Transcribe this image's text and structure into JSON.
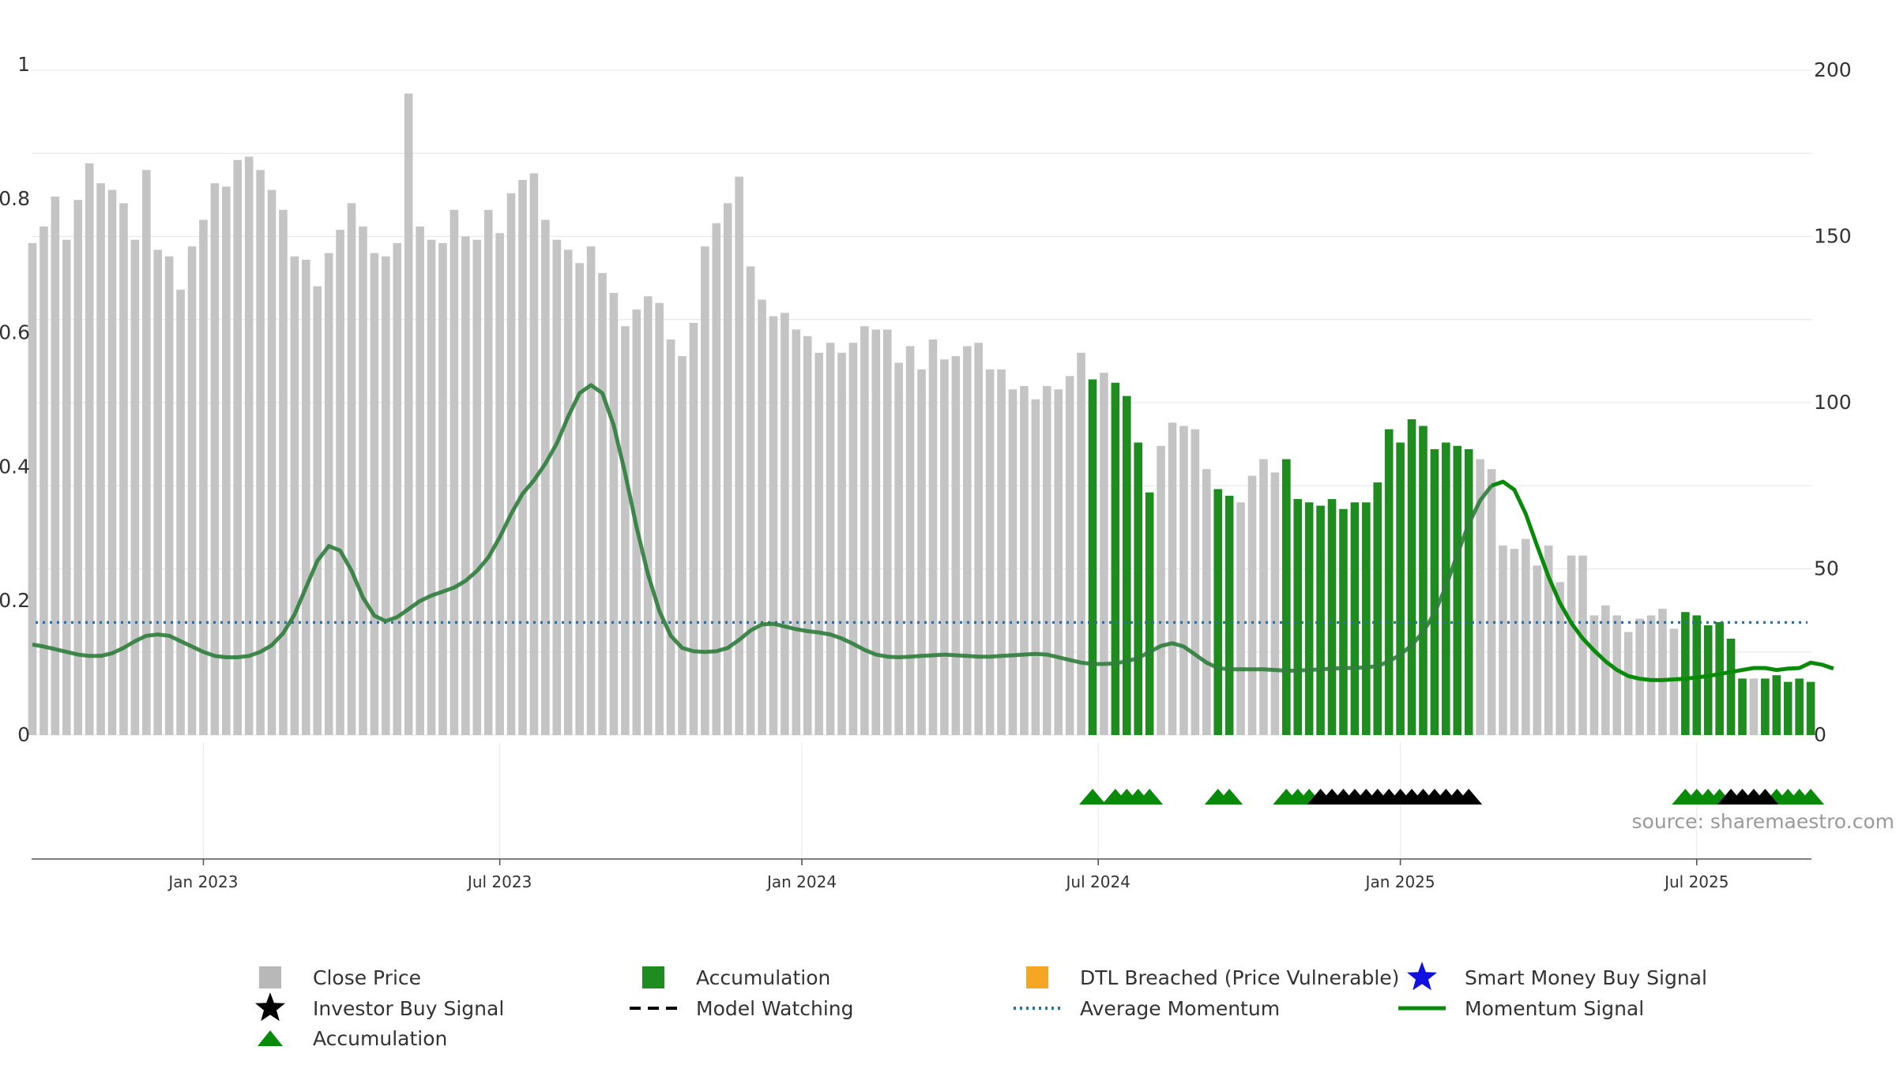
{
  "source_label": "source: sharemaestro.com",
  "colors": {
    "close_price": "#c4c4c4",
    "accumulation_bar": "#1e8c1e",
    "accumulation_marker": "#0a8a0a",
    "investor_buy": "#000000",
    "momentum_line": "#2f7d3c",
    "momentum_line_recent": "#0a8a0a",
    "average_momentum": "#2a6fa8",
    "dtl_breached": "#f5a623",
    "smart_money": "#1010e0"
  },
  "legend": [
    {
      "label": "Close Price",
      "icon": "gray-square-icon",
      "color": "#b8b8b8"
    },
    {
      "label": "Accumulation",
      "icon": "green-square-icon",
      "color": "#1e8c1e"
    },
    {
      "label": "DTL Breached (Price Vulnerable)",
      "icon": "orange-square-icon",
      "color": "#f5a623"
    },
    {
      "label": "Smart Money Buy Signal",
      "icon": "blue-star-icon",
      "color": "#1010e0"
    },
    {
      "label": "Investor Buy Signal",
      "icon": "black-star-icon",
      "color": "#000000"
    },
    {
      "label": "Model Watching",
      "icon": "black-dashed-line-icon",
      "color": "#000000"
    },
    {
      "label": "Average Momentum",
      "icon": "blue-dotted-line-icon",
      "color": "#2a6fa8"
    },
    {
      "label": "Momentum Signal",
      "icon": "green-line-icon",
      "color": "#0a8a0a"
    },
    {
      "label": "Accumulation",
      "icon": "green-triangle-icon",
      "color": "#0a8a0a"
    }
  ],
  "chart_data": {
    "type": "bar",
    "title": "",
    "xlabel": "",
    "ylabel_left": "",
    "ylabel_right": "",
    "left_axis": {
      "ticks": [
        "0",
        "0.2",
        "0.4",
        "0.6",
        "0.8",
        "1"
      ],
      "ylim": [
        0,
        1
      ]
    },
    "right_axis": {
      "ticks": [
        "0",
        "50",
        "100",
        "150",
        "200"
      ],
      "ylim": [
        0,
        200
      ]
    },
    "x_ticks": [
      {
        "label": "Jan 2023",
        "week": 15
      },
      {
        "label": "Jul 2023",
        "week": 41
      },
      {
        "label": "Jan 2024",
        "week": 67.5
      },
      {
        "label": "Jul 2024",
        "week": 93.5
      },
      {
        "label": "Jan 2025",
        "week": 120
      },
      {
        "label": "Jul 2025",
        "week": 146
      }
    ],
    "grid": true,
    "legend_position": "bottom",
    "series": [
      {
        "name": "Close Price",
        "kind": "bar",
        "axis": "right",
        "values": [
          148,
          153,
          162,
          149,
          161,
          172,
          166,
          164,
          160,
          149,
          170,
          146,
          144,
          134,
          147,
          155,
          166,
          165,
          173,
          174,
          170,
          164,
          158,
          144,
          143,
          135,
          145,
          152,
          160,
          153,
          145,
          144,
          148,
          193,
          153,
          149,
          148,
          158,
          150,
          149,
          158,
          151,
          163,
          167,
          169,
          155,
          149,
          146,
          142,
          147,
          139,
          133,
          123,
          128,
          132,
          130,
          119,
          114,
          124,
          147,
          154,
          160,
          168,
          141,
          131,
          126,
          127,
          122,
          120,
          115,
          118,
          115,
          118,
          123,
          122,
          122,
          112,
          117,
          110,
          119,
          113,
          114,
          117,
          118,
          110,
          110,
          104,
          105,
          101,
          105,
          104,
          108,
          115,
          107,
          109,
          106,
          102,
          88,
          73,
          87,
          94,
          93,
          92,
          80,
          74,
          72,
          70,
          78,
          83,
          79,
          83,
          71,
          70,
          69,
          71,
          68,
          70,
          70,
          76,
          92,
          88,
          95,
          93,
          86,
          88,
          87,
          86,
          83,
          80,
          57,
          56,
          59,
          51,
          57,
          46,
          54,
          54,
          36,
          39,
          36,
          31,
          35,
          36,
          38,
          32,
          37,
          36,
          33,
          34,
          29,
          17,
          17,
          17,
          18,
          16,
          17,
          16
        ],
        "accumulation_weeks": [
          93,
          95,
          96,
          97,
          98,
          104,
          105,
          110,
          111,
          112,
          113,
          114,
          115,
          116,
          117,
          118,
          119,
          120,
          121,
          122,
          123,
          124,
          125,
          126,
          145,
          146,
          147,
          148,
          149,
          150,
          152,
          153,
          154,
          155,
          156
        ]
      },
      {
        "name": "Momentum Signal",
        "kind": "line",
        "axis": "left",
        "values": [
          0.135,
          0.132,
          0.128,
          0.124,
          0.12,
          0.118,
          0.118,
          0.122,
          0.13,
          0.14,
          0.148,
          0.15,
          0.148,
          0.14,
          0.132,
          0.124,
          0.118,
          0.116,
          0.116,
          0.118,
          0.124,
          0.134,
          0.152,
          0.18,
          0.22,
          0.26,
          0.282,
          0.275,
          0.245,
          0.205,
          0.178,
          0.17,
          0.176,
          0.188,
          0.2,
          0.208,
          0.214,
          0.22,
          0.23,
          0.245,
          0.265,
          0.295,
          0.33,
          0.36,
          0.38,
          0.405,
          0.435,
          0.475,
          0.51,
          0.522,
          0.51,
          0.462,
          0.39,
          0.31,
          0.24,
          0.185,
          0.148,
          0.13,
          0.125,
          0.124,
          0.125,
          0.13,
          0.142,
          0.156,
          0.165,
          0.166,
          0.162,
          0.158,
          0.155,
          0.153,
          0.15,
          0.144,
          0.136,
          0.127,
          0.12,
          0.117,
          0.116,
          0.117,
          0.118,
          0.119,
          0.12,
          0.119,
          0.118,
          0.117,
          0.117,
          0.118,
          0.119,
          0.12,
          0.121,
          0.12,
          0.116,
          0.112,
          0.108,
          0.106,
          0.106,
          0.107,
          0.11,
          0.115,
          0.124,
          0.133,
          0.137,
          0.132,
          0.12,
          0.108,
          0.1,
          0.098,
          0.098,
          0.098,
          0.098,
          0.097,
          0.096,
          0.096,
          0.097,
          0.098,
          0.099,
          0.1,
          0.1,
          0.101,
          0.103,
          0.11,
          0.12,
          0.134,
          0.154,
          0.182,
          0.222,
          0.27,
          0.315,
          0.35,
          0.372,
          0.378,
          0.366,
          0.33,
          0.282,
          0.236,
          0.197,
          0.167,
          0.144,
          0.126,
          0.11,
          0.097,
          0.088,
          0.084,
          0.082,
          0.082,
          0.083,
          0.084,
          0.086,
          0.088,
          0.091,
          0.094,
          0.097,
          0.1,
          0.1,
          0.097,
          0.099,
          0.1,
          0.108,
          0.105,
          0.099
        ],
        "recent_from_week": 128
      },
      {
        "name": "Average Momentum",
        "kind": "hline",
        "axis": "left",
        "value": 0.168
      },
      {
        "name": "Accumulation",
        "kind": "marker-triangle",
        "weeks": [
          93,
          95,
          96,
          97,
          98,
          104,
          105,
          110,
          111,
          112,
          145,
          146,
          147,
          148,
          153,
          154,
          155,
          156
        ]
      },
      {
        "name": "Investor Buy Signal",
        "kind": "marker-triangle",
        "weeks": [
          113,
          114,
          115,
          116,
          117,
          118,
          119,
          120,
          121,
          122,
          123,
          124,
          125,
          126,
          149,
          150,
          151,
          152
        ]
      }
    ]
  }
}
